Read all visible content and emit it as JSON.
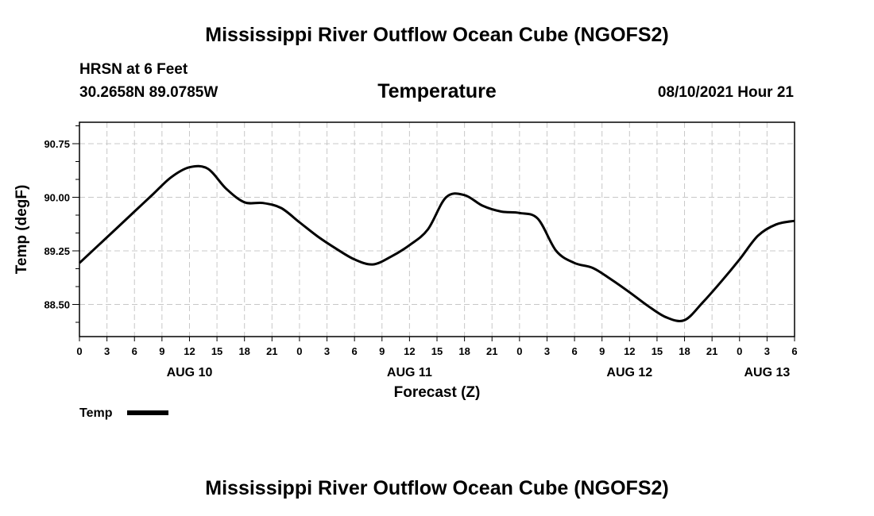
{
  "header": {
    "title": "Mississippi River Outflow Ocean Cube (NGOFS2)",
    "station": "HRSN at 6 Feet",
    "coords": "30.2658N  89.0785W",
    "datetime": "08/10/2021 Hour 21"
  },
  "footer": {
    "title": "Mississippi River Outflow Ocean Cube (NGOFS2)"
  },
  "chart_data": {
    "type": "line",
    "title": "Temperature",
    "xlabel": "Forecast (Z)",
    "ylabel": "Temp (degF)",
    "xlim": [
      0,
      78
    ],
    "ylim": [
      88.05,
      91.05
    ],
    "grid": true,
    "x_ticks": [
      0,
      3,
      6,
      9,
      12,
      15,
      18,
      21,
      24,
      27,
      30,
      33,
      36,
      39,
      42,
      45,
      48,
      51,
      54,
      57,
      60,
      63,
      66,
      69,
      72,
      75,
      78
    ],
    "x_tick_labels": [
      "0",
      "3",
      "6",
      "9",
      "12",
      "15",
      "18",
      "21",
      "0",
      "3",
      "6",
      "9",
      "12",
      "15",
      "18",
      "21",
      "0",
      "3",
      "6",
      "9",
      "12",
      "15",
      "18",
      "21",
      "0",
      "3",
      "6"
    ],
    "date_labels": [
      {
        "x": 12,
        "label": "AUG 10"
      },
      {
        "x": 36,
        "label": "AUG 11"
      },
      {
        "x": 60,
        "label": "AUG 12"
      },
      {
        "x": 75,
        "label": "AUG 13"
      }
    ],
    "y_ticks": [
      88.5,
      89.25,
      90.0,
      90.75
    ],
    "y_tick_labels": [
      "88.50",
      "89.25",
      "90.00",
      "90.75"
    ],
    "legend": {
      "label": "Temp",
      "placement": "bottom-left"
    },
    "series": [
      {
        "name": "Temp",
        "x": [
          0,
          2,
          4,
          6,
          8,
          10,
          12,
          14,
          16,
          18,
          20,
          22,
          24,
          26,
          28,
          30,
          32,
          34,
          36,
          38,
          40,
          42,
          44,
          46,
          48,
          50,
          52,
          54,
          56,
          58,
          60,
          62,
          64,
          66,
          68,
          70,
          72,
          74,
          76,
          78
        ],
        "y": [
          89.08,
          89.32,
          89.56,
          89.8,
          90.04,
          90.28,
          90.42,
          90.4,
          90.12,
          89.93,
          89.92,
          89.85,
          89.65,
          89.45,
          89.28,
          89.13,
          89.06,
          89.17,
          89.33,
          89.55,
          90.0,
          90.03,
          89.88,
          89.8,
          89.78,
          89.7,
          89.25,
          89.08,
          89.01,
          88.85,
          88.67,
          88.48,
          88.32,
          88.28,
          88.53,
          88.82,
          89.13,
          89.46,
          89.62,
          89.67
        ]
      }
    ]
  }
}
